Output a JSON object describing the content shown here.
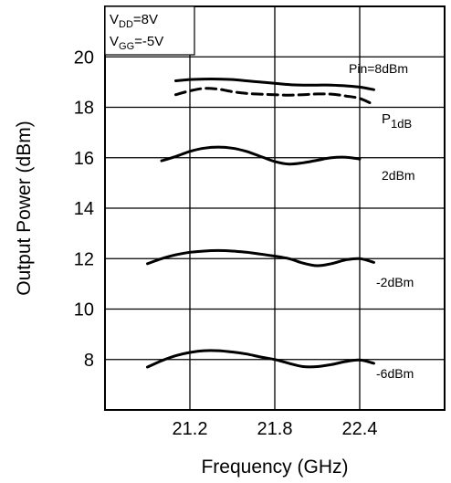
{
  "chart_data": {
    "type": "line",
    "xlabel": "Frequency (GHz)",
    "ylabel": "Output Power (dBm)",
    "xlim": [
      20.6,
      23.0
    ],
    "ylim": [
      6,
      22
    ],
    "xticks": [
      21.2,
      21.8,
      22.4
    ],
    "yticks": [
      8,
      10,
      12,
      14,
      16,
      18,
      20
    ],
    "grid": true,
    "conditions": {
      "vdd": {
        "sym": "V",
        "sub": "DD",
        "val": "=8V"
      },
      "vgg": {
        "sym": "V",
        "sub": "GG",
        "val": "=-5V"
      }
    },
    "series": [
      {
        "name": "Pin=8dBm",
        "style": "solid",
        "x": [
          21.1,
          21.2,
          21.3,
          21.4,
          21.5,
          21.6,
          21.7,
          21.8,
          21.9,
          22.0,
          22.1,
          22.2,
          22.3,
          22.4,
          22.5
        ],
        "y": [
          19.05,
          19.1,
          19.12,
          19.12,
          19.1,
          19.05,
          19.0,
          18.95,
          18.9,
          18.88,
          18.88,
          18.88,
          18.85,
          18.8,
          18.7
        ]
      },
      {
        "name": "P1dB",
        "style": "dashed",
        "x": [
          21.1,
          21.2,
          21.3,
          21.4,
          21.5,
          21.6,
          21.7,
          21.8,
          21.9,
          22.0,
          22.1,
          22.2,
          22.3,
          22.4,
          22.5
        ],
        "y": [
          18.5,
          18.65,
          18.75,
          18.72,
          18.62,
          18.55,
          18.52,
          18.5,
          18.48,
          18.5,
          18.53,
          18.52,
          18.45,
          18.35,
          18.1
        ]
      },
      {
        "name": "2dBm",
        "style": "solid",
        "x": [
          21.0,
          21.1,
          21.2,
          21.3,
          21.4,
          21.5,
          21.6,
          21.7,
          21.8,
          21.9,
          22.0,
          22.1,
          22.2,
          22.3,
          22.4
        ],
        "y": [
          15.88,
          16.05,
          16.25,
          16.38,
          16.42,
          16.38,
          16.25,
          16.05,
          15.85,
          15.75,
          15.8,
          15.9,
          16.0,
          16.02,
          15.95
        ]
      },
      {
        "name": "-2dBm",
        "style": "solid",
        "x": [
          20.9,
          21.0,
          21.1,
          21.2,
          21.3,
          21.4,
          21.5,
          21.6,
          21.7,
          21.8,
          21.9,
          22.0,
          22.1,
          22.2,
          22.3,
          22.4,
          22.5
        ],
        "y": [
          11.8,
          12.0,
          12.15,
          12.25,
          12.3,
          12.32,
          12.3,
          12.25,
          12.18,
          12.1,
          12.0,
          11.82,
          11.72,
          11.8,
          11.95,
          12.0,
          11.85
        ]
      },
      {
        "name": "-6dBm",
        "style": "solid",
        "x": [
          20.9,
          21.0,
          21.1,
          21.2,
          21.3,
          21.4,
          21.5,
          21.6,
          21.7,
          21.8,
          21.9,
          22.0,
          22.1,
          22.2,
          22.3,
          22.4,
          22.5
        ],
        "y": [
          7.7,
          7.95,
          8.15,
          8.28,
          8.35,
          8.35,
          8.3,
          8.22,
          8.1,
          8.0,
          7.85,
          7.72,
          7.72,
          7.8,
          7.92,
          7.98,
          7.85
        ]
      }
    ],
    "labels": {
      "pin8": "Pin=8dBm",
      "p1db": {
        "sym": "P",
        "sub": "1dB"
      },
      "l2": "2dBm",
      "lm2": "-2dBm",
      "lm6": "-6dBm"
    }
  }
}
